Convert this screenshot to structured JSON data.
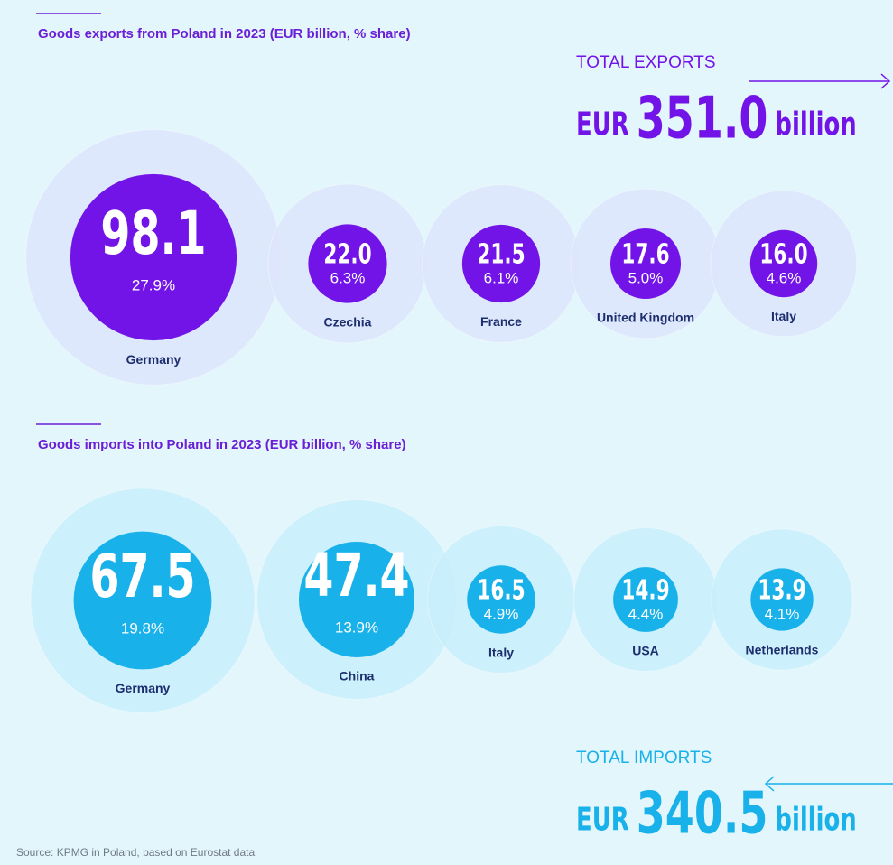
{
  "chart_data": [
    {
      "type": "bubble",
      "title": "Goods exports from Poland in 2023 (EUR billion, % share)",
      "categories": [
        "Germany",
        "Czechia",
        "France",
        "United Kingdom",
        "Italy"
      ],
      "values": [
        98.1,
        22,
        21.5,
        17.6,
        16
      ],
      "value_labels": [
        "98.1",
        "22.0",
        "21.5",
        "17.6",
        "16.0"
      ],
      "shares": [
        27.9,
        6.3,
        6.1,
        5,
        4.6
      ],
      "share_labels": [
        "27.9%",
        "6.3%",
        "6.1%",
        "5.0%",
        "4.6%"
      ],
      "color": "#7214e8",
      "halo_color": "#dde5fb",
      "total": {
        "label": "TOTAL EXPORTS",
        "currency": "EUR",
        "value": 351,
        "value_label": "351.0",
        "unit": "billion"
      }
    },
    {
      "type": "bubble",
      "title": "Goods imports into Poland in 2023 (EUR billion, % share)",
      "categories": [
        "Germany",
        "China",
        "Italy",
        "USA",
        "Netherlands"
      ],
      "values": [
        67.5,
        47.4,
        16.5,
        14.9,
        13.9
      ],
      "value_labels": [
        "67.5",
        "47.4",
        "16.5",
        "14.9",
        "13.9"
      ],
      "shares": [
        19.8,
        13.9,
        4.9,
        4.4,
        4.1
      ],
      "share_labels": [
        "19.8%",
        "13.9%",
        "4.9%",
        "4.4%",
        "4.1%"
      ],
      "color": "#18b1ea",
      "halo_color": "#c8eefb",
      "total": {
        "label": "TOTAL IMPORTS",
        "currency": "EUR",
        "value": 340.5,
        "value_label": "340.5",
        "unit": "billion"
      }
    }
  ],
  "source": "Source: KPMG in Poland, based on Eurostat data"
}
